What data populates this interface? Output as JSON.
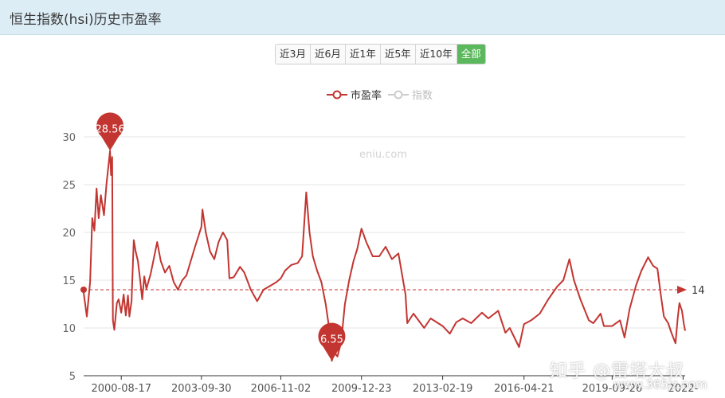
{
  "header": {
    "title": "恒生指数(hsi)历史市盈率"
  },
  "range_buttons": [
    {
      "label": "近3月",
      "active": false
    },
    {
      "label": "近6月",
      "active": false
    },
    {
      "label": "近1年",
      "active": false
    },
    {
      "label": "近5年",
      "active": false
    },
    {
      "label": "近10年",
      "active": false
    },
    {
      "label": "全部",
      "active": true
    }
  ],
  "legend": {
    "pe_label": "市盈率",
    "index_label": "指数"
  },
  "watermarks": {
    "center": "eniu.com",
    "zhihu": "知乎 @雷塔大叔",
    "site": "www.365jz.com"
  },
  "colors": {
    "series": "#c23531",
    "header_bg": "#dcedf6",
    "active_button": "#5cb85c"
  },
  "chart_data": {
    "type": "line",
    "title": "",
    "xlabel": "",
    "ylabel": "",
    "ylim": [
      5,
      32
    ],
    "xlim": [
      "1999-03-01",
      "2022-07-30"
    ],
    "yticks": [
      5,
      10,
      15,
      20,
      25,
      30
    ],
    "xticks": [
      "2000-08-17",
      "2003-09-30",
      "2006-11-02",
      "2009-12-23",
      "2013-02-19",
      "2016-04-21",
      "2019-09-26",
      "2022-"
    ],
    "grid": true,
    "series": [
      {
        "name": "市盈率",
        "points": [
          [
            "1999-03-01",
            13.7
          ],
          [
            "1999-04-15",
            11.2
          ],
          [
            "1999-06-01",
            14.8
          ],
          [
            "1999-07-01",
            21.5
          ],
          [
            "1999-08-01",
            20.2
          ],
          [
            "1999-09-01",
            24.6
          ],
          [
            "1999-10-01",
            21.5
          ],
          [
            "1999-11-01",
            23.9
          ],
          [
            "1999-12-15",
            21.8
          ],
          [
            "2000-01-20",
            25.1
          ],
          [
            "2000-02-20",
            27.2
          ],
          [
            "2000-03-10",
            28.56
          ],
          [
            "2000-03-25",
            26.0
          ],
          [
            "2000-04-10",
            27.9
          ],
          [
            "2000-04-20",
            10.8
          ],
          [
            "2000-05-10",
            9.8
          ],
          [
            "2000-06-15",
            12.6
          ],
          [
            "2000-07-10",
            13.0
          ],
          [
            "2000-08-17",
            11.6
          ],
          [
            "2000-09-20",
            13.5
          ],
          [
            "2000-10-20",
            11.3
          ],
          [
            "2000-11-20",
            13.4
          ],
          [
            "2000-12-10",
            11.2
          ],
          [
            "2001-01-10",
            12.8
          ],
          [
            "2001-02-10",
            19.2
          ],
          [
            "2001-03-10",
            18.0
          ],
          [
            "2001-04-10",
            17.0
          ],
          [
            "2001-05-10",
            15.2
          ],
          [
            "2001-06-10",
            13.0
          ],
          [
            "2001-07-10",
            15.4
          ],
          [
            "2001-08-10",
            14.1
          ],
          [
            "2001-10-10",
            15.7
          ],
          [
            "2002-01-10",
            19.0
          ],
          [
            "2002-03-01",
            17.0
          ],
          [
            "2002-05-01",
            15.8
          ],
          [
            "2002-07-01",
            16.5
          ],
          [
            "2002-09-01",
            14.8
          ],
          [
            "2002-11-01",
            14.0
          ],
          [
            "2003-01-01",
            15.0
          ],
          [
            "2003-03-01",
            15.5
          ],
          [
            "2003-05-01",
            17.0
          ],
          [
            "2003-07-01",
            18.5
          ],
          [
            "2003-09-30",
            20.6
          ],
          [
            "2003-10-15",
            22.4
          ],
          [
            "2003-12-01",
            20.0
          ],
          [
            "2004-02-01",
            18.0
          ],
          [
            "2004-04-01",
            17.2
          ],
          [
            "2004-06-01",
            19.0
          ],
          [
            "2004-08-01",
            20.0
          ],
          [
            "2004-10-01",
            19.2
          ],
          [
            "2004-11-01",
            15.2
          ],
          [
            "2005-01-01",
            15.3
          ],
          [
            "2005-04-01",
            16.4
          ],
          [
            "2005-06-01",
            15.8
          ],
          [
            "2005-09-01",
            14.0
          ],
          [
            "2005-12-01",
            12.8
          ],
          [
            "2006-03-01",
            14.0
          ],
          [
            "2006-06-01",
            14.4
          ],
          [
            "2006-09-01",
            14.8
          ],
          [
            "2006-11-02",
            15.2
          ],
          [
            "2007-01-01",
            16.0
          ],
          [
            "2007-04-01",
            16.6
          ],
          [
            "2007-07-01",
            16.8
          ],
          [
            "2007-09-01",
            17.5
          ],
          [
            "2007-10-30",
            24.2
          ],
          [
            "2007-12-15",
            20.0
          ],
          [
            "2008-02-01",
            17.5
          ],
          [
            "2008-04-01",
            16.0
          ],
          [
            "2008-06-01",
            14.8
          ],
          [
            "2008-08-01",
            12.5
          ],
          [
            "2008-10-10",
            8.9
          ],
          [
            "2008-10-27",
            6.55
          ],
          [
            "2008-12-01",
            7.5
          ],
          [
            "2009-01-15",
            7.0
          ],
          [
            "2009-03-09",
            8.5
          ],
          [
            "2009-05-01",
            12.5
          ],
          [
            "2009-07-01",
            15.0
          ],
          [
            "2009-09-01",
            17.0
          ],
          [
            "2009-10-25",
            18.3
          ],
          [
            "2009-12-23",
            20.4
          ],
          [
            "2010-03-01",
            19.0
          ],
          [
            "2010-06-01",
            17.5
          ],
          [
            "2010-09-01",
            17.5
          ],
          [
            "2010-12-01",
            18.5
          ],
          [
            "2011-03-01",
            17.2
          ],
          [
            "2011-06-01",
            17.8
          ],
          [
            "2011-09-10",
            13.5
          ],
          [
            "2011-10-05",
            10.5
          ],
          [
            "2012-01-01",
            11.5
          ],
          [
            "2012-06-01",
            10.0
          ],
          [
            "2012-09-01",
            11.0
          ],
          [
            "2013-02-19",
            10.2
          ],
          [
            "2013-06-01",
            9.4
          ],
          [
            "2013-09-01",
            10.6
          ],
          [
            "2013-12-01",
            11.0
          ],
          [
            "2014-04-01",
            10.5
          ],
          [
            "2014-09-01",
            11.6
          ],
          [
            "2014-12-01",
            11.0
          ],
          [
            "2015-04-20",
            11.8
          ],
          [
            "2015-08-01",
            9.5
          ],
          [
            "2015-10-01",
            10.0
          ],
          [
            "2016-02-10",
            8.0
          ],
          [
            "2016-04-21",
            10.4
          ],
          [
            "2016-08-01",
            10.8
          ],
          [
            "2016-12-01",
            11.5
          ],
          [
            "2017-04-01",
            13.0
          ],
          [
            "2017-08-01",
            14.3
          ],
          [
            "2017-11-01",
            15.0
          ],
          [
            "2018-01-26",
            17.2
          ],
          [
            "2018-04-01",
            15.0
          ],
          [
            "2018-07-01",
            13.0
          ],
          [
            "2018-10-30",
            10.8
          ],
          [
            "2019-01-01",
            10.5
          ],
          [
            "2019-04-15",
            11.5
          ],
          [
            "2019-06-01",
            10.2
          ],
          [
            "2019-09-26",
            10.2
          ],
          [
            "2020-01-15",
            10.8
          ],
          [
            "2020-03-20",
            9.0
          ],
          [
            "2020-06-01",
            12.0
          ],
          [
            "2020-09-01",
            14.5
          ],
          [
            "2020-11-15",
            16.0
          ],
          [
            "2021-02-18",
            17.4
          ],
          [
            "2021-05-01",
            16.5
          ],
          [
            "2021-07-01",
            16.2
          ],
          [
            "2021-08-15",
            13.6
          ],
          [
            "2021-10-01",
            11.2
          ],
          [
            "2021-12-01",
            10.5
          ],
          [
            "2022-01-15",
            9.5
          ],
          [
            "2022-03-15",
            8.4
          ],
          [
            "2022-04-15",
            11.0
          ],
          [
            "2022-05-10",
            12.6
          ],
          [
            "2022-06-15",
            11.8
          ],
          [
            "2022-07-10",
            10.5
          ],
          [
            "2022-07-30",
            9.7
          ]
        ]
      }
    ],
    "markers": [
      {
        "label": "28.56",
        "date": "2000-03-10",
        "value": 28.56,
        "kind": "max"
      },
      {
        "label": "6.55",
        "date": "2008-10-27",
        "value": 6.55,
        "kind": "min"
      }
    ],
    "current_line": {
      "value": 14,
      "label": "14"
    }
  }
}
